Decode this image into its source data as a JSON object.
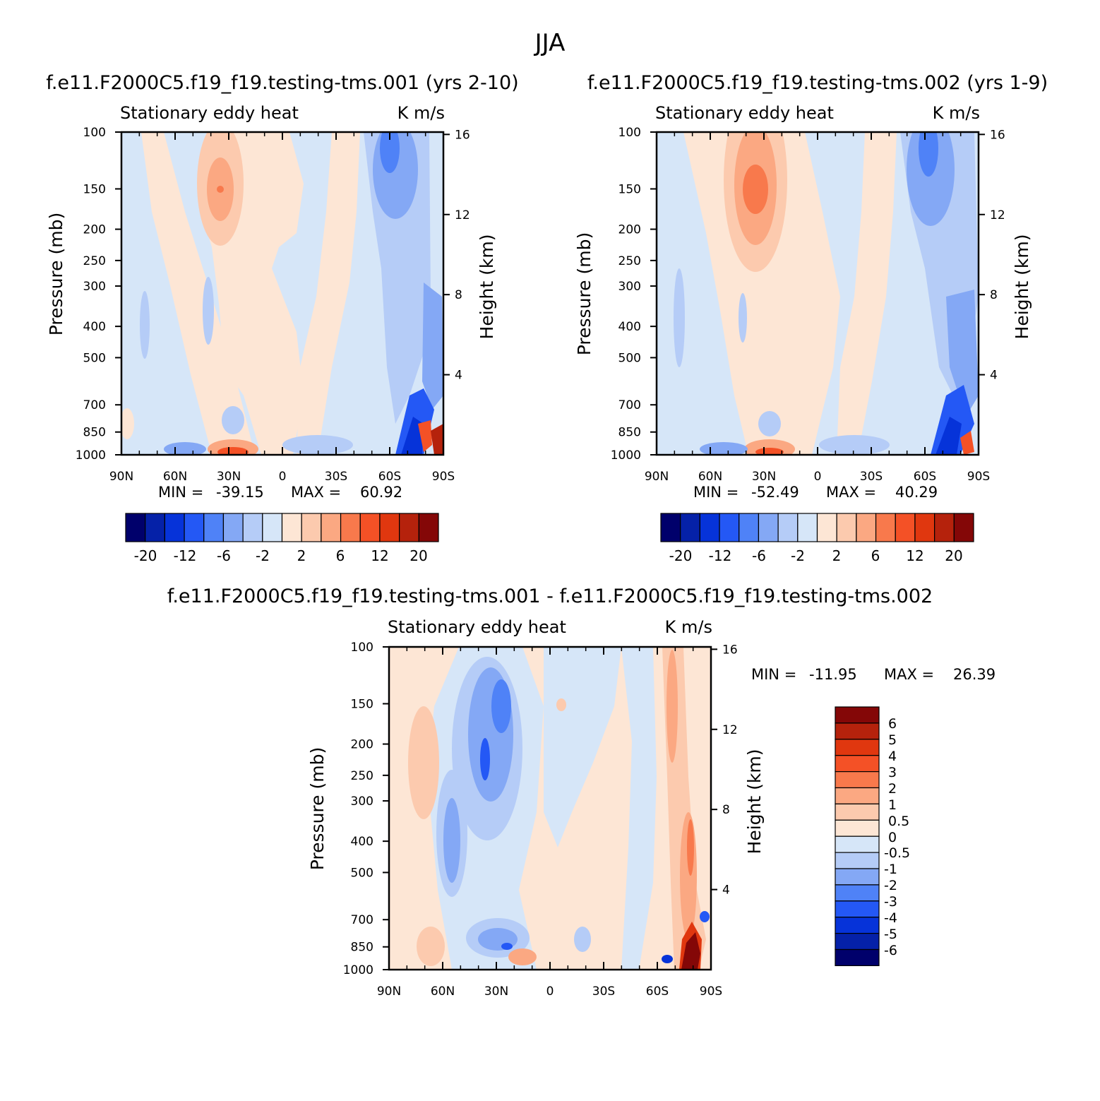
{
  "page": {
    "title": "JJA"
  },
  "colors": {
    "panel_scale": [
      "#00006b",
      "#0521a8",
      "#0633d9",
      "#2458f5",
      "#4f82f7",
      "#84a8f5",
      "#b5ccf7",
      "#d6e6f8",
      "#fde6d5",
      "#fccaae",
      "#fba882",
      "#f8794c",
      "#f45126",
      "#e0370f",
      "#b5220c",
      "#840707"
    ],
    "diff_scale": [
      "#840707",
      "#b5220c",
      "#e0370f",
      "#f45126",
      "#f8794c",
      "#fba882",
      "#fccaae",
      "#fde6d5",
      "#d6e6f8",
      "#b5ccf7",
      "#84a8f5",
      "#4f82f7",
      "#2458f5",
      "#0633d9",
      "#0521a8",
      "#00006b"
    ]
  },
  "chart_data": [
    {
      "type": "heatmap",
      "title": "f.e11.F2000C5.f19_f19.testing-tms.001 (yrs 2-10)",
      "left_label": "Stationary eddy heat",
      "right_label": "K m/s",
      "xlabel": "",
      "ylabel": "Pressure (mb)",
      "y2label": "Height (km)",
      "x_ticks": [
        "90N",
        "60N",
        "30N",
        "0",
        "30S",
        "60S",
        "90S"
      ],
      "y_ticks": [
        100,
        150,
        200,
        250,
        300,
        400,
        500,
        700,
        850,
        1000
      ],
      "y_range": [
        1000,
        100
      ],
      "y2_ticks": [
        4,
        8,
        12,
        16
      ],
      "stats": {
        "min_label": "MIN =",
        "min": "-39.15",
        "max_label": "MAX =",
        "max": "60.92"
      },
      "colorbar": {
        "orientation": "horizontal",
        "labels": [
          "-20",
          "-12",
          "-6",
          "-2",
          "2",
          "6",
          "12",
          "20"
        ]
      }
    },
    {
      "type": "heatmap",
      "title": "f.e11.F2000C5.f19_f19.testing-tms.002 (yrs 1-9)",
      "left_label": "Stationary eddy heat",
      "right_label": "K m/s",
      "xlabel": "",
      "ylabel": "Pressure (mb)",
      "y2label": "Height (km)",
      "x_ticks": [
        "90N",
        "60N",
        "30N",
        "0",
        "30S",
        "60S",
        "90S"
      ],
      "y_ticks": [
        100,
        150,
        200,
        250,
        300,
        400,
        500,
        700,
        850,
        1000
      ],
      "y_range": [
        1000,
        100
      ],
      "y2_ticks": [
        4,
        8,
        12,
        16
      ],
      "stats": {
        "min_label": "MIN =",
        "min": "-52.49",
        "max_label": "MAX =",
        "max": "40.29"
      },
      "colorbar": {
        "orientation": "horizontal",
        "labels": [
          "-20",
          "-12",
          "-6",
          "-2",
          "2",
          "6",
          "12",
          "20"
        ]
      }
    },
    {
      "type": "heatmap",
      "title": "f.e11.F2000C5.f19_f19.testing-tms.001 - f.e11.F2000C5.f19_f19.testing-tms.002",
      "left_label": "Stationary eddy heat",
      "right_label": "K m/s",
      "xlabel": "",
      "ylabel": "Pressure (mb)",
      "y2label": "Height (km)",
      "x_ticks": [
        "90N",
        "60N",
        "30N",
        "0",
        "30S",
        "60S",
        "90S"
      ],
      "y_ticks": [
        100,
        150,
        200,
        250,
        300,
        400,
        500,
        700,
        850,
        1000
      ],
      "y_range": [
        1000,
        100
      ],
      "y2_ticks": [
        4,
        8,
        12,
        16
      ],
      "stats": {
        "min_label": "MIN =",
        "min": "-11.95",
        "max_label": "MAX =",
        "max": "26.39"
      },
      "colorbar": {
        "orientation": "vertical",
        "labels": [
          "6",
          "5",
          "4",
          "3",
          "2",
          "1",
          "0.5",
          "0",
          "-0.5",
          "-1",
          "-2",
          "-3",
          "-4",
          "-5",
          "-6"
        ]
      }
    }
  ]
}
